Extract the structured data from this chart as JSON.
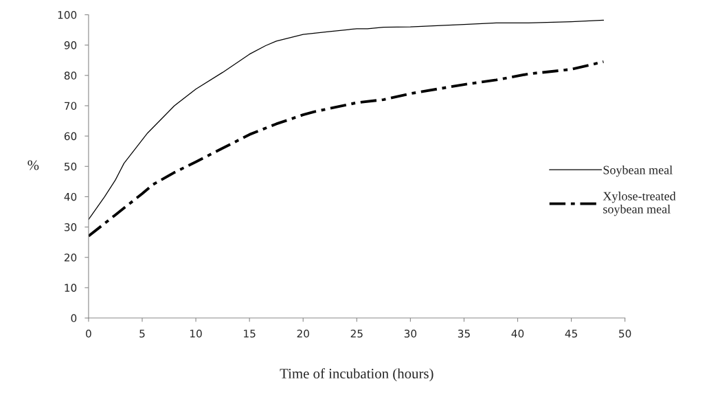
{
  "chart_data": {
    "type": "line",
    "xlabel": "Time of incubation (hours)",
    "ylabel": "%",
    "xlim": [
      0,
      50
    ],
    "xticks": [
      0,
      5,
      10,
      15,
      20,
      25,
      30,
      35,
      40,
      45,
      50
    ],
    "ylim": [
      0,
      100
    ],
    "yticks": [
      0,
      10,
      20,
      30,
      40,
      50,
      60,
      70,
      80,
      90,
      100
    ],
    "grid": false,
    "legend": "right",
    "marker": "none",
    "series": [
      {
        "name": "Soybean meal",
        "color": "#000000",
        "line_style": "solid",
        "x": [
          0,
          1.5,
          2.5,
          3.3,
          5.5,
          8,
          10,
          12.5,
          15,
          16.5,
          17.5,
          20,
          22.5,
          25,
          26,
          27.5,
          30,
          35,
          38,
          41,
          45,
          48
        ],
        "values": [
          32.5,
          40,
          45.5,
          51,
          61,
          70,
          75.5,
          81,
          87,
          89.8,
          91.3,
          93.5,
          94.5,
          95.4,
          95.4,
          95.9,
          96,
          96.8,
          97.3,
          97.3,
          97.7,
          98.2
        ]
      },
      {
        "name": "Xylose-treated\nsoybean meal",
        "color": "#000000",
        "line_style": "dashdot",
        "x": [
          0,
          2.5,
          5,
          6,
          8,
          10,
          12.5,
          15,
          17.5,
          20,
          21,
          25,
          27.5,
          30,
          35,
          38,
          41,
          45,
          48
        ],
        "values": [
          27,
          34,
          41,
          44,
          48,
          51.5,
          56,
          60.5,
          64,
          67,
          68,
          71,
          72,
          74,
          77,
          78.5,
          80.5,
          82,
          84.5
        ]
      }
    ]
  }
}
